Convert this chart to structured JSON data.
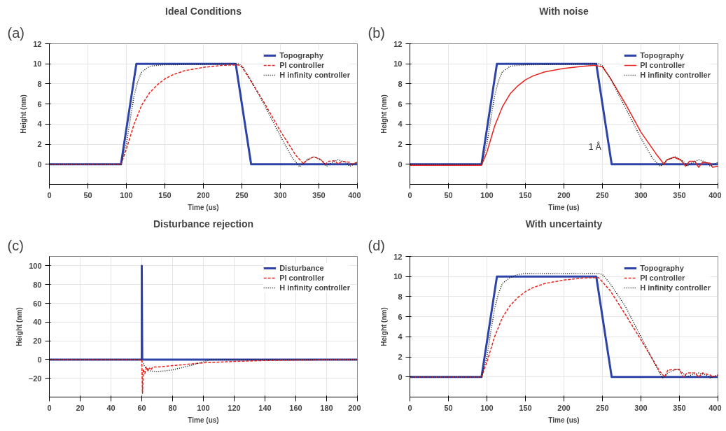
{
  "chart_data": [
    {
      "type": "line",
      "title": "Ideal Conditions",
      "xlabel": "Time (us)",
      "ylabel": "Height (nm)",
      "annotations": [
        "(a)"
      ],
      "xlim": [
        0,
        400
      ],
      "ylim": [
        -2,
        12
      ],
      "xticks": [
        0,
        50,
        100,
        150,
        200,
        250,
        300,
        350,
        400
      ],
      "yticks": [
        0,
        2,
        4,
        6,
        8,
        10,
        12
      ],
      "grid": true,
      "legend": "top right",
      "series": [
        {
          "name": "Topography",
          "color": "#2e43a8",
          "line_style": "solid",
          "x": [
            0,
            93,
            113,
            242,
            262,
            400
          ],
          "values": [
            0,
            0,
            10,
            10,
            0,
            0
          ]
        },
        {
          "name": "PI controller",
          "color": "#e8221c",
          "line_style": "dashed",
          "x": [
            0,
            93,
            100,
            110,
            120,
            130,
            140,
            150,
            160,
            175,
            200,
            225,
            245,
            250,
            260,
            280,
            300,
            320,
            330,
            333,
            343,
            352,
            358,
            363,
            370,
            375,
            380,
            390,
            393,
            400
          ],
          "values": [
            0,
            0,
            1.5,
            4,
            5.9,
            7.1,
            7.9,
            8.5,
            8.9,
            9.3,
            9.65,
            9.85,
            9.9,
            9.7,
            8.5,
            6,
            3.3,
            0.9,
            0.05,
            0.3,
            0.75,
            0.5,
            0,
            0.3,
            0.35,
            0.05,
            0.3,
            0.2,
            0,
            0.2
          ]
        },
        {
          "name": "H infinity controller",
          "color": "#111111",
          "line_style": "dotted",
          "x": [
            0,
            93,
            100,
            105,
            110,
            115,
            120,
            130,
            140,
            150,
            245,
            250,
            260,
            280,
            300,
            315,
            325,
            330,
            335,
            345,
            355,
            360,
            365,
            375,
            385,
            390,
            400
          ],
          "values": [
            0,
            0,
            2,
            4.5,
            6.8,
            8.3,
            9.2,
            9.75,
            9.85,
            9.9,
            10,
            9.8,
            8.6,
            5.8,
            2.8,
            0.7,
            -0.25,
            0.1,
            0.5,
            0.75,
            0.3,
            -0.2,
            0.1,
            0.45,
            0.2,
            -0.2,
            0.2
          ]
        }
      ]
    },
    {
      "type": "line",
      "title": "With noise",
      "xlabel": "Time (us)",
      "ylabel": "Height (nm)",
      "annotations": [
        "(b)",
        "1 Å"
      ],
      "xlim": [
        0,
        400
      ],
      "ylim": [
        -2,
        12
      ],
      "xticks": [
        0,
        50,
        100,
        150,
        200,
        250,
        300,
        350,
        400
      ],
      "yticks": [
        0,
        2,
        4,
        6,
        8,
        10,
        12
      ],
      "grid": true,
      "legend": "top right",
      "series": [
        {
          "name": "Topography",
          "color": "#2e43a8",
          "line_style": "solid",
          "x": [
            0,
            93,
            113,
            242,
            262,
            400
          ],
          "values": [
            0,
            0,
            10,
            10,
            0,
            0
          ]
        },
        {
          "name": "PI controller",
          "color": "#e8221c",
          "line_style": "solid",
          "x": [
            0,
            93,
            100,
            110,
            120,
            130,
            140,
            150,
            160,
            175,
            200,
            225,
            240,
            250,
            260,
            280,
            300,
            320,
            330,
            333,
            343,
            352,
            358,
            363,
            370,
            375,
            380,
            390,
            393,
            400
          ],
          "values": [
            -0.1,
            -0.1,
            1.2,
            3.8,
            5.7,
            7,
            7.8,
            8.4,
            8.8,
            9.2,
            9.55,
            9.75,
            9.85,
            9.7,
            8.6,
            6,
            3.2,
            1,
            0,
            0.4,
            0.7,
            0.4,
            -0.2,
            0.3,
            0.3,
            -0.3,
            0.2,
            0.1,
            -0.3,
            -0.2
          ]
        },
        {
          "name": "H infinity controller",
          "color": "#111111",
          "line_style": "dotted",
          "x": [
            0,
            93,
            100,
            105,
            110,
            115,
            120,
            130,
            140,
            150,
            245,
            250,
            260,
            280,
            300,
            315,
            325,
            330,
            335,
            345,
            355,
            360,
            365,
            375,
            385,
            390,
            400
          ],
          "values": [
            0,
            0,
            2,
            4.5,
            6.8,
            8.3,
            9.2,
            9.75,
            9.85,
            9.9,
            10,
            9.8,
            8.6,
            5.6,
            2.6,
            0.6,
            -0.2,
            0.1,
            0.5,
            0.75,
            0.3,
            -0.2,
            0.1,
            0.45,
            0.2,
            -0.2,
            0.2
          ]
        }
      ]
    },
    {
      "type": "line",
      "title": "Disturbance rejection",
      "xlabel": "Time (us)",
      "ylabel": "Height (nm)",
      "annotations": [
        "(c)"
      ],
      "xlim": [
        0,
        200
      ],
      "ylim": [
        -40,
        110
      ],
      "xticks": [
        0,
        20,
        40,
        60,
        80,
        100,
        120,
        140,
        160,
        180,
        200
      ],
      "yticks": [
        -20,
        0,
        20,
        40,
        60,
        80,
        100
      ],
      "grid": true,
      "legend": "top right",
      "series": [
        {
          "name": "Disturbance",
          "color": "#2e43a8",
          "line_style": "solid",
          "x": [
            0,
            60,
            60,
            60.3,
            200
          ],
          "values": [
            0,
            0,
            100,
            0,
            0
          ]
        },
        {
          "name": "PI controller",
          "color": "#e8221c",
          "line_style": "dashed",
          "x": [
            0,
            60,
            60.5,
            61,
            62,
            63,
            64,
            65,
            66,
            67,
            70,
            80,
            90,
            100,
            120,
            140,
            160,
            200
          ],
          "values": [
            0,
            0,
            -36,
            -10,
            -15,
            -8,
            -12,
            -9,
            -11,
            -8,
            -8,
            -6.5,
            -5,
            -3.5,
            -2,
            -1,
            -0.5,
            0
          ]
        },
        {
          "name": "H infinity controller",
          "color": "#111111",
          "line_style": "dotted",
          "x": [
            0,
            60,
            62,
            65,
            70,
            80,
            90,
            100,
            105,
            200
          ],
          "values": [
            0,
            0,
            -8,
            -12,
            -13,
            -11,
            -7,
            -2.5,
            0,
            0
          ]
        }
      ]
    },
    {
      "type": "line",
      "title": "With uncertainty",
      "xlabel": "Time (us)",
      "ylabel": "Height (nm)",
      "annotations": [
        "(d)"
      ],
      "xlim": [
        0,
        400
      ],
      "ylim": [
        -2,
        12
      ],
      "xticks": [
        0,
        50,
        100,
        150,
        200,
        250,
        300,
        350,
        400
      ],
      "yticks": [
        0,
        2,
        4,
        6,
        8,
        10,
        12
      ],
      "grid": true,
      "legend": "top right",
      "series": [
        {
          "name": "Topography",
          "color": "#2e43a8",
          "line_style": "solid",
          "x": [
            0,
            93,
            113,
            242,
            262,
            400
          ],
          "values": [
            0,
            0,
            10,
            10,
            0,
            0
          ]
        },
        {
          "name": "PI controller",
          "color": "#e8221c",
          "line_style": "dashed",
          "x": [
            0,
            93,
            100,
            110,
            120,
            130,
            140,
            150,
            160,
            175,
            200,
            225,
            245,
            260,
            280,
            300,
            325,
            331,
            335,
            350,
            355,
            360,
            370,
            375,
            380,
            390,
            393,
            400
          ],
          "values": [
            0,
            0,
            1.5,
            4,
            5.9,
            7.1,
            7.9,
            8.5,
            8.9,
            9.3,
            9.65,
            9.85,
            9.9,
            8.6,
            6.2,
            3.7,
            0.5,
            0,
            0.7,
            0.75,
            0,
            0.4,
            0.4,
            0,
            0.4,
            0.2,
            0,
            0.2
          ]
        },
        {
          "name": "H infinity controller",
          "color": "#111111",
          "line_style": "dotted",
          "x": [
            0,
            93,
            100,
            105,
            110,
            115,
            120,
            130,
            140,
            150,
            245,
            250,
            260,
            280,
            300,
            320,
            328,
            335,
            345,
            350,
            360,
            365,
            375,
            385,
            390,
            400
          ],
          "values": [
            0,
            0,
            2,
            4.5,
            6.8,
            8.3,
            9.3,
            9.9,
            10.2,
            10.3,
            10.3,
            10.2,
            9.3,
            7,
            4,
            1,
            -0.1,
            0.4,
            0.75,
            0.7,
            0,
            0.2,
            0.4,
            0.2,
            -0.1,
            0.2
          ]
        }
      ]
    }
  ]
}
